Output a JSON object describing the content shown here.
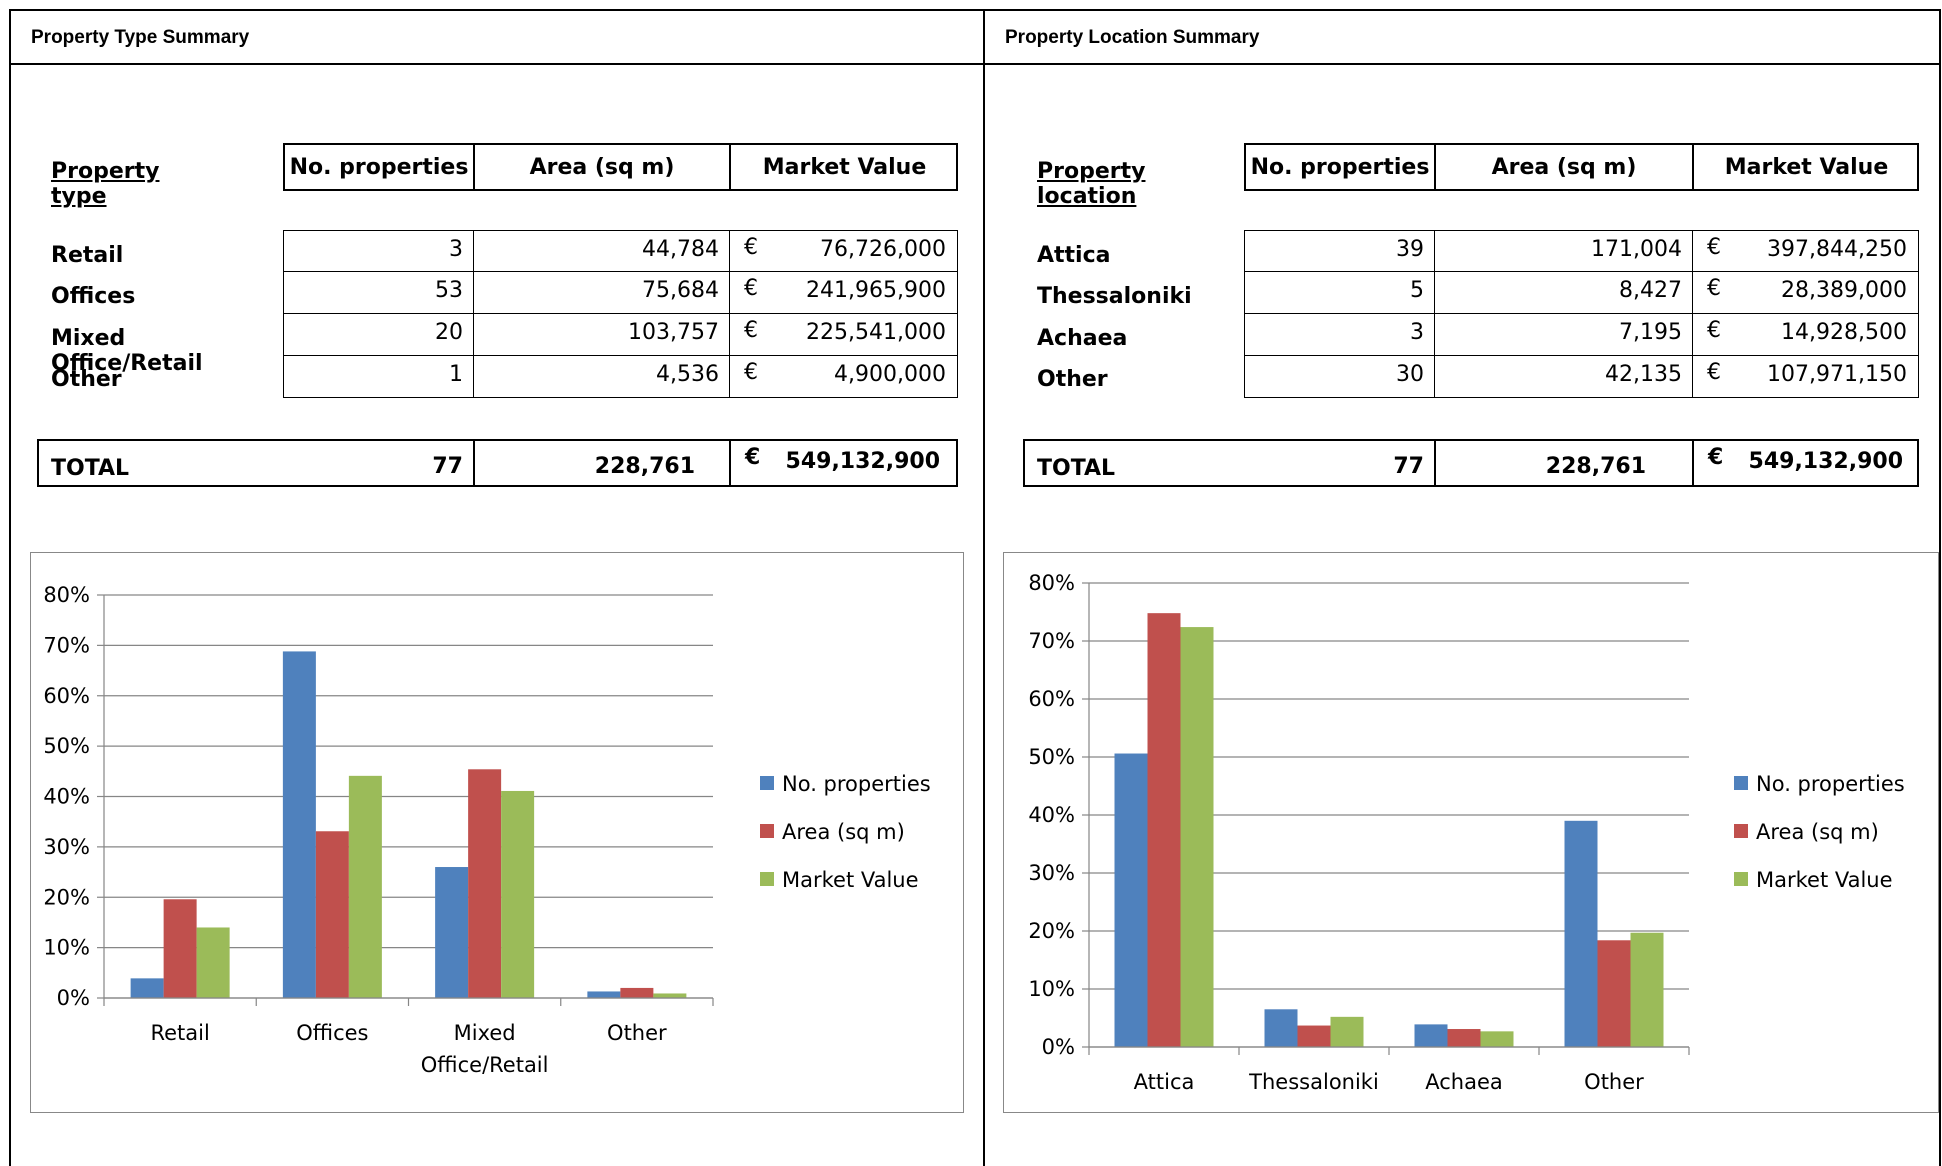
{
  "left": {
    "title": "Property Type Summary",
    "table": {
      "label_header": "Property type",
      "col_headers": [
        "No. properties",
        "Area (sq m)",
        "Market Value"
      ],
      "currency": "€",
      "rows": [
        {
          "label": "Retail",
          "count": "3",
          "area": "44,784",
          "value": "76,726,000"
        },
        {
          "label": "Offices",
          "count": "53",
          "area": "75,684",
          "value": "241,965,900"
        },
        {
          "label": "Mixed Office/Retail",
          "count": "20",
          "area": "103,757",
          "value": "225,541,000"
        },
        {
          "label": "Other",
          "count": "1",
          "area": "4,536",
          "value": "4,900,000"
        }
      ],
      "total": {
        "label": "TOTAL",
        "count": "77",
        "area": "228,761",
        "value": "549,132,900"
      }
    }
  },
  "right": {
    "title": "Property Location Summary",
    "table": {
      "label_header": "Property location",
      "col_headers": [
        "No. properties",
        "Area (sq m)",
        "Market Value"
      ],
      "currency": "€",
      "rows": [
        {
          "label": "Attica",
          "count": "39",
          "area": "171,004",
          "value": "397,844,250"
        },
        {
          "label": "Thessaloniki",
          "count": "5",
          "area": "8,427",
          "value": "28,389,000"
        },
        {
          "label": "Achaea",
          "count": "3",
          "area": "7,195",
          "value": "14,928,500"
        },
        {
          "label": "Other",
          "count": "30",
          "area": "42,135",
          "value": "107,971,150"
        }
      ],
      "total": {
        "label": "TOTAL",
        "count": "77",
        "area": "228,761",
        "value": "549,132,900"
      }
    }
  },
  "chart_data": [
    {
      "type": "bar",
      "categories": [
        "Retail",
        "Offices",
        "Mixed Office/Retail",
        "Other"
      ],
      "category_lines": [
        [
          "Retail"
        ],
        [
          "Offices"
        ],
        [
          "Mixed",
          "Office/Retail"
        ],
        [
          "Other"
        ]
      ],
      "series": [
        {
          "name": "No. properties",
          "color": "#4F81BD",
          "values": [
            3.9,
            68.8,
            26.0,
            1.3
          ]
        },
        {
          "name": "Area (sq m)",
          "color": "#C0504D",
          "values": [
            19.6,
            33.1,
            45.4,
            2.0
          ]
        },
        {
          "name": "Market Value",
          "color": "#9BBB59",
          "values": [
            14.0,
            44.1,
            41.1,
            0.9
          ]
        }
      ],
      "ylim": [
        0,
        80
      ],
      "yticks": [
        "0%",
        "10%",
        "20%",
        "30%",
        "40%",
        "50%",
        "60%",
        "70%",
        "80%"
      ],
      "grid": true,
      "legend": "right"
    },
    {
      "type": "bar",
      "categories": [
        "Attica",
        "Thessaloniki",
        "Achaea",
        "Other"
      ],
      "category_lines": [
        [
          "Attica"
        ],
        [
          "Thessaloniki"
        ],
        [
          "Achaea"
        ],
        [
          "Other"
        ]
      ],
      "series": [
        {
          "name": "No. properties",
          "color": "#4F81BD",
          "values": [
            50.6,
            6.5,
            3.9,
            39.0
          ]
        },
        {
          "name": "Area (sq m)",
          "color": "#C0504D",
          "values": [
            74.8,
            3.7,
            3.1,
            18.4
          ]
        },
        {
          "name": "Market Value",
          "color": "#9BBB59",
          "values": [
            72.4,
            5.2,
            2.7,
            19.7
          ]
        }
      ],
      "ylim": [
        0,
        80
      ],
      "yticks": [
        "0%",
        "10%",
        "20%",
        "30%",
        "40%",
        "50%",
        "60%",
        "70%",
        "80%"
      ],
      "grid": true,
      "legend": "right"
    }
  ]
}
